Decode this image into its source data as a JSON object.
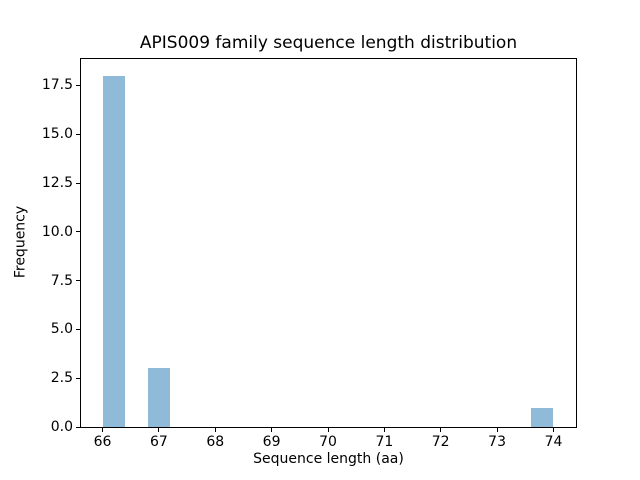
{
  "chart_data": {
    "type": "bar",
    "subtype": "histogram",
    "title": "APIS009 family sequence length distribution",
    "xlabel": "Sequence length (aa)",
    "ylabel": "Frequency",
    "xlim": [
      65.6,
      74.4
    ],
    "ylim": [
      0,
      18.9
    ],
    "x_ticks": [
      66,
      67,
      68,
      69,
      70,
      71,
      72,
      73,
      74
    ],
    "y_ticks": [
      0.0,
      2.5,
      5.0,
      7.5,
      10.0,
      12.5,
      15.0,
      17.5
    ],
    "y_tick_labels": [
      "0.0",
      "2.5",
      "5.0",
      "7.5",
      "10.0",
      "12.5",
      "15.0",
      "17.5"
    ],
    "bin_width": 0.4,
    "bins": [
      {
        "x0": 66.0,
        "x1": 66.4,
        "count": 18
      },
      {
        "x0": 66.8,
        "x1": 67.2,
        "count": 3
      },
      {
        "x0": 73.6,
        "x1": 74.0,
        "count": 1
      }
    ],
    "grid": false,
    "legend": "none",
    "bar_color": "#8fbbd9",
    "axis_color": "#000000",
    "background_color": "#ffffff"
  }
}
